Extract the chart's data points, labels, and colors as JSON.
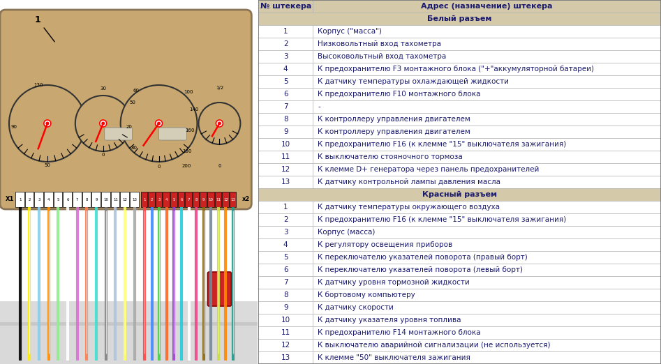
{
  "header_col1": "№ штекера",
  "header_col2": "Адрес (назначение) штекера",
  "section1_title": "Белый разъем",
  "section2_title": "Красный разъем",
  "white_rows": [
    [
      1,
      "Корпус (\"масса\")"
    ],
    [
      2,
      "Низковольтный вход тахометра"
    ],
    [
      3,
      "Высоковольтный вход тахометра"
    ],
    [
      4,
      "К предохранителю F3 монтажного блока (\"+\"аккумуляторной батареи)"
    ],
    [
      5,
      "К датчику температуры охлаждающей жидкости"
    ],
    [
      6,
      "К предохранителю F10 монтажного блока"
    ],
    [
      7,
      "-"
    ],
    [
      8,
      "К контроллеру управления двигателем"
    ],
    [
      9,
      "К контроллеру управления двигателем"
    ],
    [
      10,
      "К предохранителю F16 (к клемме \"15\" выключателя зажигания)"
    ],
    [
      11,
      "К выключателю стояночного тормоза"
    ],
    [
      12,
      "К клемме D+ генератора через панель предохранителей"
    ],
    [
      13,
      "К датчику контрольной лампы давления масла"
    ]
  ],
  "red_rows": [
    [
      1,
      "К датчику температуры окружающего воздуха"
    ],
    [
      2,
      "К предохранителю F16 (к клемме \"15\" выключателя зажигания)"
    ],
    [
      3,
      "Корпус (масса)"
    ],
    [
      4,
      "К регулятору освещения приборов"
    ],
    [
      5,
      "К переключателю указателей поворота (правый борт)"
    ],
    [
      6,
      "К переключателю указателей поворота (левый борт)"
    ],
    [
      7,
      "К датчику уровня тормозной жидкости"
    ],
    [
      8,
      "К бортовому компьютеру"
    ],
    [
      9,
      "К датчику скорости"
    ],
    [
      10,
      "К датчику указателя уровня топлива"
    ],
    [
      11,
      "К предохранителю F14 монтажного блока"
    ],
    [
      12,
      "К выключателю аварийной сигнализации (не используется)"
    ],
    [
      13,
      "К клемме \"50\" выключателя зажигания"
    ]
  ],
  "bg_color": "#ffffff",
  "header_bg": "#d4c9a8",
  "section_bg": "#d4c9a8",
  "row_bg_white": "#ffffff",
  "text_color": "#1a1a6e",
  "border_color": "#aaaaaa",
  "dash_color": "#c8a870",
  "dash_edge": "#8b7355",
  "gauge_bg": "#c8a870",
  "connector_white_bg": "#ffffff",
  "connector_red_bg": "#cc2222",
  "wire_colors_white": [
    "#000000",
    "#ffee00",
    "#87ceeb",
    "#ff8c00",
    "#90ee90",
    "#ffffff",
    "#da70d6",
    "#ff7f50",
    "#40e0d0",
    "#808080",
    "#b0c4de",
    "#ffff66",
    "#a9a9a9"
  ],
  "wire_colors_red": [
    "#ff4444",
    "#4488ff",
    "#44cc44",
    "#ff6622",
    "#9944cc",
    "#22ccdd",
    "#ffffff",
    "#ee4488",
    "#8b6914",
    "#778899",
    "#ccdd44",
    "#ff8800",
    "#229988"
  ],
  "font_size_table": 7.5,
  "font_size_header": 8.0
}
